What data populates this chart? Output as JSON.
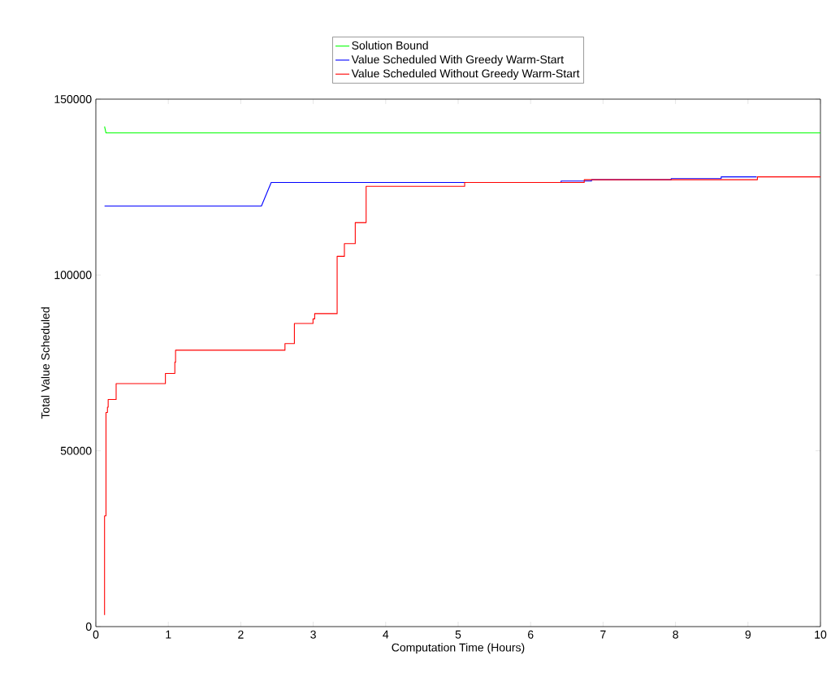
{
  "chart_data": {
    "type": "line",
    "xlabel": "Computation Time (Hours)",
    "ylabel": "Total Value Scheduled",
    "xlim": [
      0,
      10
    ],
    "ylim": [
      0,
      150000
    ],
    "xticks": [
      0,
      1,
      2,
      3,
      4,
      5,
      6,
      7,
      8,
      9,
      10
    ],
    "yticks": [
      0,
      50000,
      100000,
      150000
    ],
    "legend": "top",
    "grid": false,
    "series": [
      {
        "name": "Solution Bound",
        "color": "#00ff00",
        "x": [
          0.12,
          0.14,
          10
        ],
        "values": [
          142200,
          140400,
          140400
        ]
      },
      {
        "name": "Value Scheduled With Greedy Warm-Start",
        "color": "#0000ff",
        "x": [
          0.12,
          2.285,
          2.42,
          6.42,
          6.42,
          6.84,
          6.84,
          7.94,
          7.94,
          8.63,
          8.63,
          9.12
        ],
        "values": [
          119600,
          119600,
          126300,
          126300,
          126700,
          126700,
          127100,
          127100,
          127400,
          127400,
          127900,
          127900
        ]
      },
      {
        "name": "Value Scheduled Without Greedy Warm-Start",
        "color": "#ff0000",
        "type": "step",
        "x": [
          0.12,
          0.12,
          0.14,
          0.16,
          0.17,
          0.28,
          0.96,
          1.09,
          1.1,
          2.61,
          2.74,
          2.997,
          3.02,
          3.33,
          3.43,
          3.58,
          3.73,
          5.09,
          6.74,
          9.13,
          10
        ],
        "values": [
          3300,
          31500,
          60900,
          62400,
          64600,
          69100,
          72000,
          75200,
          78600,
          80500,
          86200,
          87500,
          89000,
          105300,
          108900,
          114900,
          125200,
          126300,
          127100,
          127900,
          127900
        ]
      }
    ]
  }
}
